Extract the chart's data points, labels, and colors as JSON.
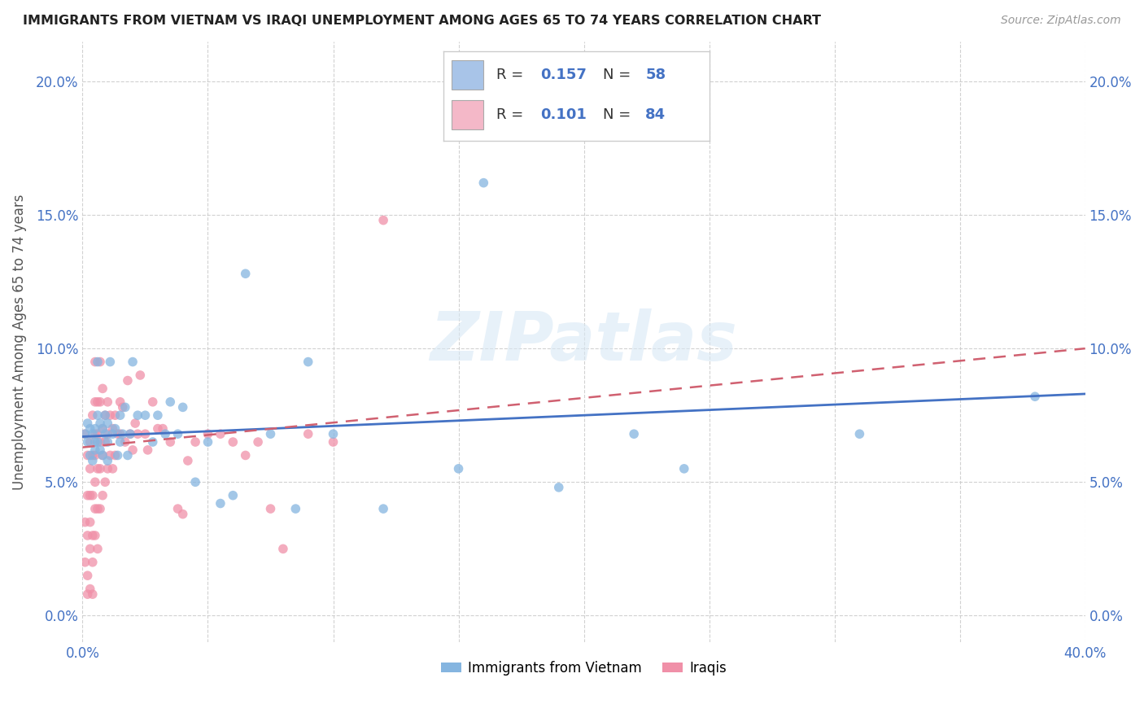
{
  "title": "IMMIGRANTS FROM VIETNAM VS IRAQI UNEMPLOYMENT AMONG AGES 65 TO 74 YEARS CORRELATION CHART",
  "source": "Source: ZipAtlas.com",
  "ylabel": "Unemployment Among Ages 65 to 74 years",
  "xlim": [
    0.0,
    0.4
  ],
  "ylim": [
    -0.01,
    0.215
  ],
  "xticks": [
    0.0,
    0.05,
    0.1,
    0.15,
    0.2,
    0.25,
    0.3,
    0.35,
    0.4
  ],
  "yticks": [
    0.0,
    0.05,
    0.1,
    0.15,
    0.2
  ],
  "xtick_labels_show": [
    "0.0%",
    "",
    "",
    "",
    "",
    "",
    "",
    "",
    "40.0%"
  ],
  "ytick_labels": [
    "0.0%",
    "5.0%",
    "10.0%",
    "15.0%",
    "20.0%"
  ],
  "blue_R": 0.157,
  "blue_N": 58,
  "pink_R": 0.101,
  "pink_N": 84,
  "blue_legend_color": "#a8c4e8",
  "pink_legend_color": "#f4b8c8",
  "blue_scatter_color": "#85b5e0",
  "pink_scatter_color": "#f090a8",
  "blue_line_color": "#4472C4",
  "pink_line_color": "#d06070",
  "watermark_text": "ZIPatlas",
  "legend1_label": "Immigrants from Vietnam",
  "legend2_label": "Iraqis",
  "blue_x": [
    0.001,
    0.002,
    0.002,
    0.003,
    0.003,
    0.004,
    0.004,
    0.005,
    0.005,
    0.005,
    0.006,
    0.006,
    0.006,
    0.007,
    0.007,
    0.008,
    0.008,
    0.009,
    0.009,
    0.01,
    0.01,
    0.01,
    0.011,
    0.012,
    0.013,
    0.014,
    0.015,
    0.015,
    0.016,
    0.017,
    0.018,
    0.019,
    0.02,
    0.022,
    0.025,
    0.028,
    0.03,
    0.033,
    0.035,
    0.038,
    0.04,
    0.045,
    0.05,
    0.055,
    0.06,
    0.065,
    0.075,
    0.085,
    0.09,
    0.1,
    0.12,
    0.15,
    0.16,
    0.19,
    0.22,
    0.24,
    0.31,
    0.38
  ],
  "blue_y": [
    0.068,
    0.065,
    0.072,
    0.06,
    0.07,
    0.058,
    0.068,
    0.065,
    0.062,
    0.07,
    0.095,
    0.075,
    0.065,
    0.062,
    0.072,
    0.07,
    0.06,
    0.068,
    0.075,
    0.058,
    0.065,
    0.072,
    0.095,
    0.068,
    0.07,
    0.06,
    0.075,
    0.065,
    0.068,
    0.078,
    0.06,
    0.068,
    0.095,
    0.075,
    0.075,
    0.065,
    0.075,
    0.068,
    0.08,
    0.068,
    0.078,
    0.05,
    0.065,
    0.042,
    0.045,
    0.128,
    0.068,
    0.04,
    0.095,
    0.068,
    0.04,
    0.055,
    0.162,
    0.048,
    0.068,
    0.055,
    0.068,
    0.082
  ],
  "pink_x": [
    0.001,
    0.001,
    0.001,
    0.002,
    0.002,
    0.002,
    0.002,
    0.002,
    0.003,
    0.003,
    0.003,
    0.003,
    0.003,
    0.003,
    0.004,
    0.004,
    0.004,
    0.004,
    0.004,
    0.004,
    0.005,
    0.005,
    0.005,
    0.005,
    0.005,
    0.005,
    0.005,
    0.006,
    0.006,
    0.006,
    0.006,
    0.006,
    0.007,
    0.007,
    0.007,
    0.007,
    0.007,
    0.008,
    0.008,
    0.008,
    0.008,
    0.009,
    0.009,
    0.009,
    0.01,
    0.01,
    0.01,
    0.011,
    0.011,
    0.012,
    0.012,
    0.013,
    0.013,
    0.014,
    0.015,
    0.015,
    0.016,
    0.017,
    0.018,
    0.019,
    0.02,
    0.021,
    0.022,
    0.023,
    0.025,
    0.026,
    0.028,
    0.03,
    0.032,
    0.035,
    0.038,
    0.04,
    0.042,
    0.045,
    0.05,
    0.055,
    0.06,
    0.065,
    0.07,
    0.075,
    0.08,
    0.09,
    0.1,
    0.12
  ],
  "pink_y": [
    0.068,
    0.035,
    0.02,
    0.06,
    0.045,
    0.03,
    0.015,
    0.008,
    0.065,
    0.055,
    0.045,
    0.035,
    0.025,
    0.01,
    0.075,
    0.06,
    0.045,
    0.03,
    0.02,
    0.008,
    0.095,
    0.08,
    0.068,
    0.06,
    0.05,
    0.04,
    0.03,
    0.08,
    0.068,
    0.055,
    0.04,
    0.025,
    0.095,
    0.08,
    0.065,
    0.055,
    0.04,
    0.085,
    0.07,
    0.06,
    0.045,
    0.075,
    0.065,
    0.05,
    0.08,
    0.068,
    0.055,
    0.075,
    0.06,
    0.07,
    0.055,
    0.075,
    0.06,
    0.068,
    0.08,
    0.068,
    0.078,
    0.065,
    0.088,
    0.068,
    0.062,
    0.072,
    0.068,
    0.09,
    0.068,
    0.062,
    0.08,
    0.07,
    0.07,
    0.065,
    0.04,
    0.038,
    0.058,
    0.065,
    0.068,
    0.068,
    0.065,
    0.06,
    0.065,
    0.04,
    0.025,
    0.068,
    0.065,
    0.148
  ],
  "blue_trend_x": [
    0.0,
    0.4
  ],
  "blue_trend_y": [
    0.067,
    0.083
  ],
  "pink_trend_x": [
    0.0,
    0.4
  ],
  "pink_trend_y": [
    0.063,
    0.1
  ]
}
